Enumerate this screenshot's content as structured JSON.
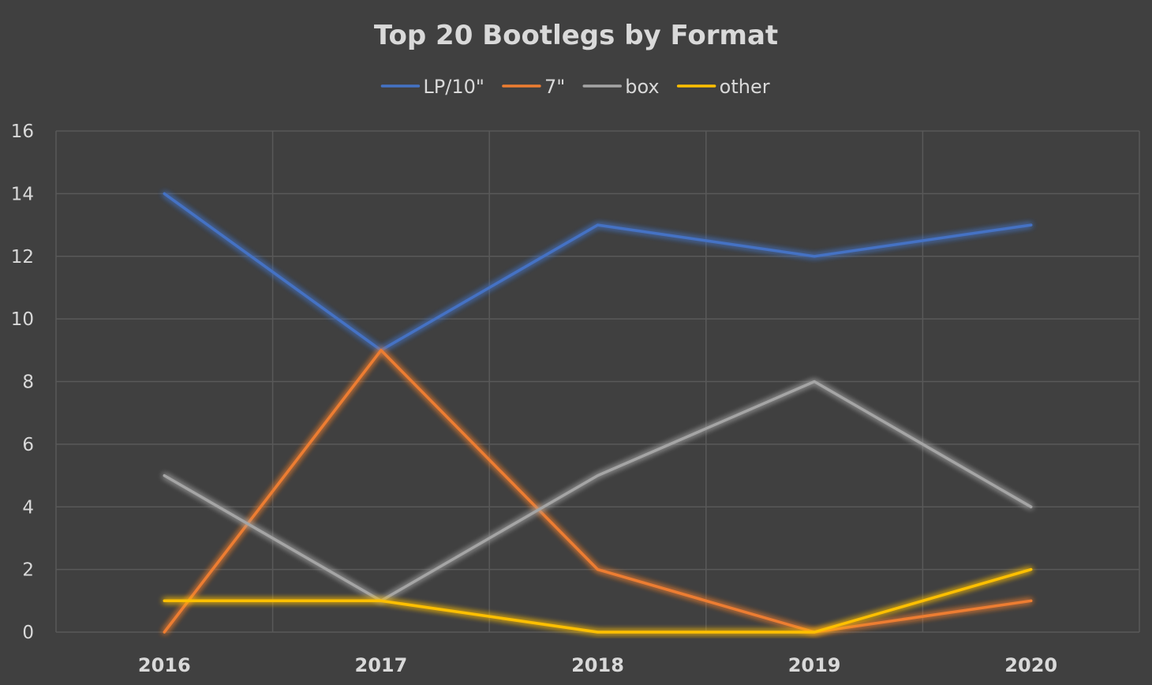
{
  "chart_data": {
    "type": "line",
    "title": "Top 20 Bootlegs by Format",
    "xlabel": "",
    "ylabel": "",
    "categories": [
      "2016",
      "2017",
      "2018",
      "2019",
      "2020"
    ],
    "series": [
      {
        "name": "LP/10\"",
        "values": [
          14,
          9,
          13,
          12,
          13
        ],
        "color": "#4472c4"
      },
      {
        "name": "7\"",
        "values": [
          0,
          9,
          2,
          0,
          1
        ],
        "color": "#ed7d31"
      },
      {
        "name": "box",
        "values": [
          5,
          1,
          5,
          8,
          4
        ],
        "color": "#a5a5a5"
      },
      {
        "name": "other",
        "values": [
          1,
          1,
          0,
          0,
          2
        ],
        "color": "#ffc000"
      }
    ],
    "ylim": [
      0,
      16
    ],
    "yticks": [
      "0",
      "2",
      "4",
      "6",
      "8",
      "10",
      "12",
      "14",
      "16"
    ],
    "grid": true,
    "legend_position": "top-center"
  }
}
